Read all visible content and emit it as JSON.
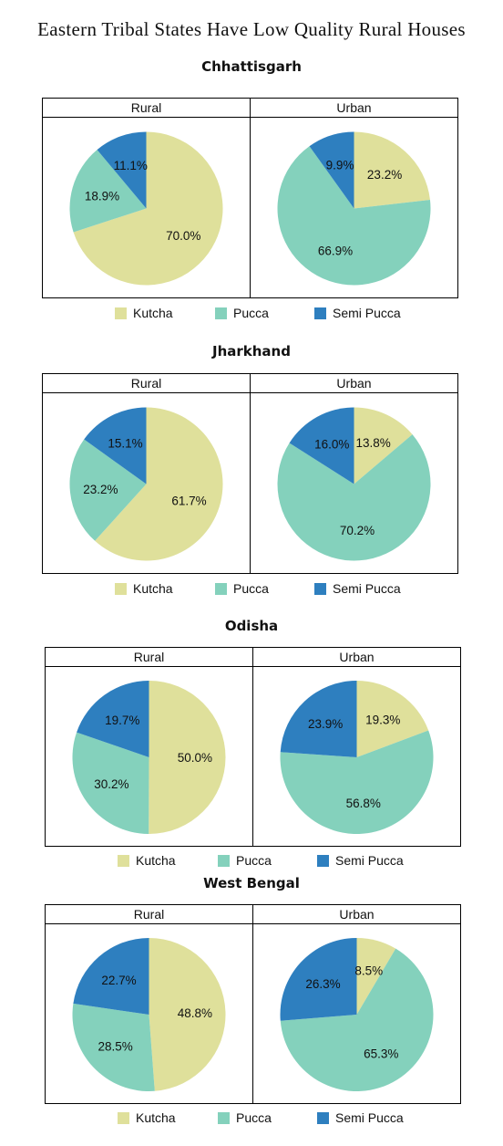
{
  "title": "Eastern Tribal States Have Low Quality Rural Houses",
  "colors": {
    "Kutcha": "#dfe09b",
    "Pucca": "#84d1bc",
    "Semi Pucca": "#2e7fbf"
  },
  "legend": [
    "Kutcha",
    "Pucca",
    "Semi Pucca"
  ],
  "chart_data": [
    {
      "type": "pie",
      "title": "Chhattisgarh",
      "subtitle": "Rural",
      "categories": [
        "Kutcha",
        "Pucca",
        "Semi Pucca"
      ],
      "values": [
        70.0,
        18.9,
        11.1
      ],
      "labels": [
        "70.0%",
        "18.9%",
        "11.1%"
      ]
    },
    {
      "type": "pie",
      "title": "Chhattisgarh",
      "subtitle": "Urban",
      "categories": [
        "Kutcha",
        "Pucca",
        "Semi Pucca"
      ],
      "values": [
        23.2,
        66.9,
        9.9
      ],
      "labels": [
        "23.2%",
        "66.9%",
        "9.9%"
      ]
    },
    {
      "type": "pie",
      "title": "Jharkhand",
      "subtitle": "Rural",
      "categories": [
        "Kutcha",
        "Pucca",
        "Semi Pucca"
      ],
      "values": [
        61.7,
        23.2,
        15.1
      ],
      "labels": [
        "61.7%",
        "23.2%",
        "15.1%"
      ]
    },
    {
      "type": "pie",
      "title": "Jharkhand",
      "subtitle": "Urban",
      "categories": [
        "Kutcha",
        "Pucca",
        "Semi Pucca"
      ],
      "values": [
        13.8,
        70.2,
        16.0
      ],
      "labels": [
        "13.8%",
        "70.2%",
        "16.0%"
      ]
    },
    {
      "type": "pie",
      "title": "Odisha",
      "subtitle": "Rural",
      "categories": [
        "Kutcha",
        "Pucca",
        "Semi Pucca"
      ],
      "values": [
        50.0,
        30.2,
        19.7
      ],
      "labels": [
        "50.0%",
        "30.2%",
        "19.7%"
      ]
    },
    {
      "type": "pie",
      "title": "Odisha",
      "subtitle": "Urban",
      "categories": [
        "Kutcha",
        "Pucca",
        "Semi Pucca"
      ],
      "values": [
        19.3,
        56.8,
        23.9
      ],
      "labels": [
        "19.3%",
        "56.8%",
        "23.9%"
      ]
    },
    {
      "type": "pie",
      "title": "West Bengal",
      "subtitle": "Rural",
      "categories": [
        "Kutcha",
        "Pucca",
        "Semi Pucca"
      ],
      "values": [
        48.8,
        28.5,
        22.7
      ],
      "labels": [
        "48.8%",
        "28.5%",
        "22.7%"
      ]
    },
    {
      "type": "pie",
      "title": "West Bengal",
      "subtitle": "Urban",
      "categories": [
        "Kutcha",
        "Pucca",
        "Semi Pucca"
      ],
      "values": [
        8.5,
        65.3,
        26.3
      ],
      "labels": [
        "8.5%",
        "65.3%",
        "26.3%"
      ]
    }
  ]
}
